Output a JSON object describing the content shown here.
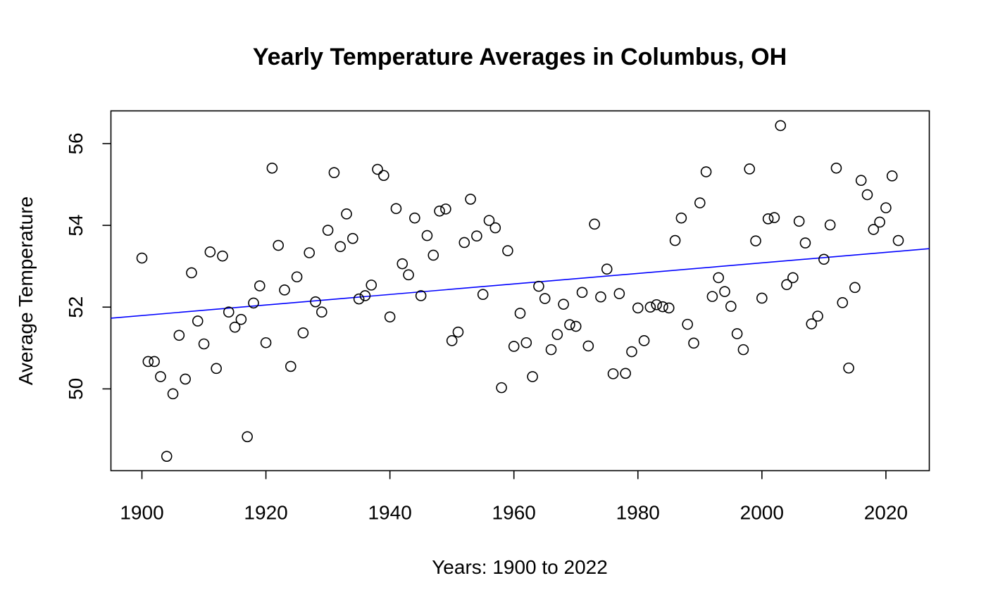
{
  "chart_data": {
    "type": "scatter",
    "title": "Yearly Temperature Averages in Columbus, OH",
    "xlabel": "Years: 1900 to 2022",
    "ylabel": "Average Temperature",
    "xlim": [
      1895,
      2027
    ],
    "ylim": [
      48.0,
      56.8
    ],
    "xticks": [
      1900,
      1920,
      1940,
      1960,
      1980,
      2000,
      2020
    ],
    "yticks": [
      50,
      52,
      54,
      56
    ],
    "grid": false,
    "legend": "none",
    "point_color": "#000000",
    "trend_color": "#0000ff",
    "trend_line": {
      "x": [
        1895,
        2027
      ],
      "y": [
        51.73,
        53.43
      ]
    },
    "x": [
      1900,
      1901,
      1902,
      1903,
      1904,
      1905,
      1906,
      1907,
      1908,
      1909,
      1910,
      1911,
      1912,
      1913,
      1914,
      1915,
      1916,
      1917,
      1918,
      1919,
      1920,
      1921,
      1922,
      1923,
      1924,
      1925,
      1926,
      1927,
      1928,
      1929,
      1930,
      1931,
      1932,
      1933,
      1934,
      1935,
      1936,
      1937,
      1938,
      1939,
      1940,
      1941,
      1942,
      1943,
      1944,
      1945,
      1946,
      1947,
      1948,
      1949,
      1950,
      1951,
      1952,
      1953,
      1954,
      1955,
      1956,
      1957,
      1958,
      1959,
      1960,
      1961,
      1962,
      1963,
      1964,
      1965,
      1966,
      1967,
      1968,
      1969,
      1970,
      1971,
      1972,
      1973,
      1974,
      1975,
      1976,
      1977,
      1978,
      1979,
      1980,
      1981,
      1982,
      1983,
      1984,
      1985,
      1986,
      1987,
      1988,
      1989,
      1990,
      1991,
      1992,
      1993,
      1994,
      1995,
      1996,
      1997,
      1998,
      1999,
      2000,
      2001,
      2002,
      2003,
      2004,
      2005,
      2006,
      2007,
      2008,
      2009,
      2010,
      2011,
      2012,
      2013,
      2014,
      2015,
      2016,
      2017,
      2018,
      2019,
      2020,
      2021,
      2022
    ],
    "y": [
      53.2,
      50.67,
      50.67,
      50.3,
      48.35,
      49.88,
      51.31,
      50.24,
      52.84,
      51.66,
      51.1,
      53.35,
      50.5,
      53.25,
      51.88,
      51.51,
      51.7,
      48.83,
      52.1,
      52.52,
      51.13,
      55.4,
      53.51,
      52.42,
      50.55,
      52.74,
      51.37,
      53.33,
      52.13,
      51.88,
      53.88,
      55.29,
      53.48,
      54.28,
      53.68,
      52.2,
      52.28,
      52.54,
      55.37,
      55.22,
      51.76,
      54.41,
      53.06,
      52.79,
      54.18,
      52.28,
      53.75,
      53.27,
      54.35,
      54.4,
      51.18,
      51.39,
      53.58,
      54.64,
      53.74,
      52.31,
      54.12,
      53.94,
      50.03,
      53.38,
      51.04,
      51.85,
      51.13,
      50.3,
      52.51,
      52.21,
      50.96,
      51.33,
      52.07,
      51.57,
      51.53,
      52.36,
      51.05,
      54.03,
      52.25,
      52.93,
      50.37,
      52.33,
      50.38,
      50.91,
      51.98,
      51.18,
      52.0,
      52.06,
      52.01,
      51.98,
      53.63,
      54.18,
      51.58,
      51.12,
      54.55,
      55.31,
      52.26,
      52.72,
      52.38,
      52.02,
      51.35,
      50.96,
      55.38,
      53.62,
      52.22,
      54.16,
      54.19,
      56.44,
      52.55,
      52.72,
      54.1,
      53.57,
      51.59,
      51.78,
      53.17,
      54.01,
      55.4,
      52.11,
      50.51,
      52.48,
      55.1,
      54.75,
      53.9,
      54.08,
      54.43,
      55.21,
      53.63
    ]
  }
}
